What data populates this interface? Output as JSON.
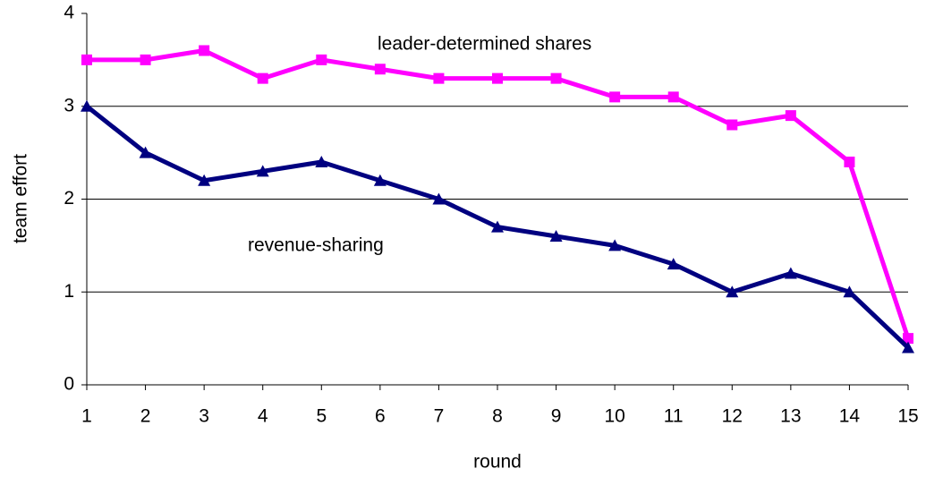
{
  "chart_data": {
    "type": "line",
    "xlabel": "round",
    "ylabel": "team effort",
    "x": [
      1,
      2,
      3,
      4,
      5,
      6,
      7,
      8,
      9,
      10,
      11,
      12,
      13,
      14,
      15
    ],
    "xlim": [
      1,
      15
    ],
    "xticks": [
      1,
      2,
      3,
      4,
      5,
      6,
      7,
      8,
      9,
      10,
      11,
      12,
      13,
      14,
      15
    ],
    "ylim": [
      0,
      4
    ],
    "yticks": [
      0,
      1,
      2,
      3,
      4
    ],
    "grid": true,
    "series": [
      {
        "name": "leader-determined shares",
        "color": "#ff00ff",
        "marker": "square",
        "values": [
          3.5,
          3.5,
          3.6,
          3.3,
          3.5,
          3.4,
          3.3,
          3.3,
          3.3,
          3.1,
          3.1,
          2.8,
          2.9,
          2.4,
          0.5
        ]
      },
      {
        "name": "revenue-sharing",
        "color": "#000080",
        "marker": "triangle",
        "values": [
          3.0,
          2.5,
          2.2,
          2.3,
          2.4,
          2.2,
          2.0,
          1.7,
          1.6,
          1.5,
          1.3,
          1.0,
          1.2,
          1.0,
          0.4
        ]
      }
    ]
  }
}
